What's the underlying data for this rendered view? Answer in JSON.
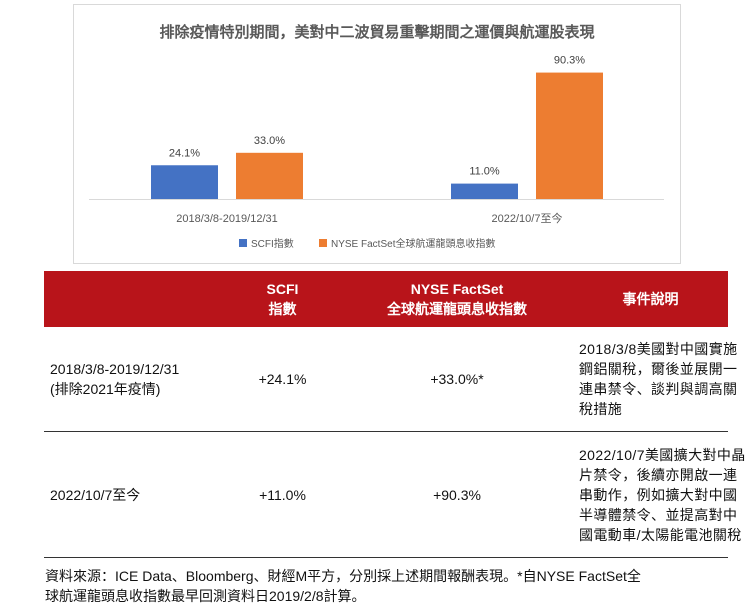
{
  "chart_data": {
    "type": "bar",
    "title": "排除疫情特別期間，美對中二波貿易重擊期間之運價與航運股表現",
    "categories": [
      "2018/3/8-2019/12/31",
      "2022/10/7至今"
    ],
    "series": [
      {
        "name": "SCFI指數",
        "values": [
          24.1,
          11.0
        ],
        "labels": [
          "24.1%",
          "11.0%"
        ],
        "color": "#4472c4"
      },
      {
        "name": "NYSE FactSet全球航運龍頭息收指數",
        "values": [
          33.0,
          90.3
        ],
        "labels": [
          "33.0%",
          "90.3%"
        ],
        "color": "#ed7d31"
      }
    ],
    "ylim": [
      0,
      100
    ],
    "grid": false,
    "legend": "bottom",
    "xlabel": "",
    "ylabel": ""
  },
  "table": {
    "header_color": "#b8141a",
    "headers": [
      "",
      "SCFI\n指數",
      "NYSE FactSet\n全球航運龍頭息收指數",
      "事件說明"
    ],
    "rows": [
      {
        "period": "2018/3/8-2019/12/31\n(排除2021年疫情)",
        "scfi": "+24.1%",
        "nyse": "+33.0%*",
        "event": "2018/3/8美國對中國實施\n鋼鋁關稅，爾後並展開一\n連串禁令、談判與調高關\n稅措施"
      },
      {
        "period": "2022/10/7至今",
        "scfi": "+11.0%",
        "nyse": "+90.3%",
        "event": "2022/10/7美國擴大對中晶\n片禁令，後續亦開啟一連\n串動作，例如擴大對中國\n半導體禁令、並提高對中\n國電動車/太陽能電池關稅"
      }
    ]
  },
  "footnote": "資料來源：ICE Data、Bloomberg、財經M平方，分別採上述期間報酬表現。*自NYSE FactSet全\n球航運龍頭息收指數最早回測資料日2019/2/8計算。"
}
